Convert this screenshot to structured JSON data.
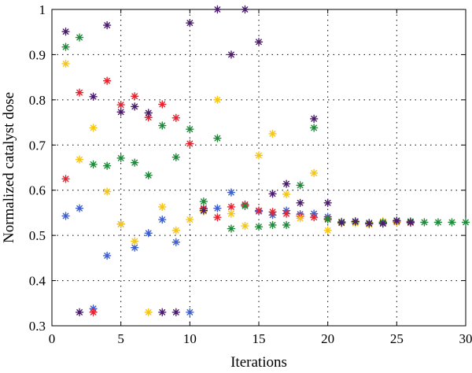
{
  "chart_data": {
    "type": "scatter",
    "title": "",
    "xlabel": "Iterations",
    "ylabel": "Normalized catalyst dose",
    "xlim": [
      0,
      30
    ],
    "ylim": [
      0.3,
      1.0
    ],
    "xticks": [
      0,
      5,
      10,
      15,
      20,
      25,
      30
    ],
    "yticks": [
      0.3,
      0.4,
      0.5,
      0.6,
      0.7,
      0.8,
      0.9,
      1.0
    ],
    "xtick_labels": [
      "0",
      "5",
      "10",
      "15",
      "20",
      "25",
      "30"
    ],
    "ytick_labels": [
      "0.3",
      "0.4",
      "0.5",
      "0.6",
      "0.7",
      "0.8",
      "0.9",
      "1"
    ],
    "grid": true,
    "marker": "asterisk",
    "series": [
      {
        "color": "#3f5fcf",
        "points": [
          [
            1,
            0.543
          ],
          [
            2,
            0.56
          ],
          [
            3,
            0.338
          ],
          [
            4,
            0.455
          ],
          [
            5,
            0.525
          ],
          [
            6,
            0.473
          ],
          [
            7,
            0.505
          ],
          [
            8,
            0.535
          ],
          [
            9,
            0.485
          ],
          [
            10,
            0.33
          ],
          [
            11,
            0.558
          ],
          [
            12,
            0.56
          ],
          [
            13,
            0.595
          ],
          [
            14,
            0.568
          ],
          [
            15,
            0.553
          ],
          [
            16,
            0.545
          ],
          [
            17,
            0.555
          ],
          [
            18,
            0.547
          ],
          [
            19,
            0.548
          ],
          [
            20,
            0.541
          ],
          [
            21,
            0.528
          ],
          [
            22,
            0.531
          ],
          [
            23,
            0.528
          ],
          [
            24,
            0.527
          ],
          [
            25,
            0.53
          ],
          [
            26,
            0.529
          ]
        ]
      },
      {
        "color": "#e8222e",
        "points": [
          [
            1,
            0.625
          ],
          [
            2,
            0.816
          ],
          [
            3,
            0.33
          ],
          [
            4,
            0.842
          ],
          [
            5,
            0.789
          ],
          [
            6,
            0.808
          ],
          [
            7,
            0.761
          ],
          [
            8,
            0.79
          ],
          [
            9,
            0.76
          ],
          [
            10,
            0.703
          ],
          [
            11,
            0.56
          ],
          [
            12,
            0.54
          ],
          [
            13,
            0.563
          ],
          [
            14,
            0.568
          ],
          [
            15,
            0.555
          ],
          [
            16,
            0.552
          ],
          [
            17,
            0.548
          ],
          [
            18,
            0.543
          ],
          [
            19,
            0.54
          ],
          [
            20,
            0.537
          ],
          [
            21,
            0.53
          ],
          [
            22,
            0.53
          ],
          [
            23,
            0.527
          ],
          [
            24,
            0.528
          ],
          [
            25,
            0.529
          ],
          [
            26,
            0.528
          ]
        ]
      },
      {
        "color": "#f5c518",
        "points": [
          [
            1,
            0.88
          ],
          [
            2,
            0.668
          ],
          [
            3,
            0.738
          ],
          [
            4,
            0.597
          ],
          [
            5,
            0.525
          ],
          [
            6,
            0.487
          ],
          [
            7,
            0.33
          ],
          [
            8,
            0.563
          ],
          [
            9,
            0.511
          ],
          [
            10,
            0.535
          ],
          [
            11,
            0.553
          ],
          [
            12,
            0.8
          ],
          [
            13,
            0.548
          ],
          [
            14,
            0.521
          ],
          [
            15,
            0.677
          ],
          [
            16,
            0.725
          ],
          [
            17,
            0.591
          ],
          [
            18,
            0.538
          ],
          [
            19,
            0.638
          ],
          [
            20,
            0.511
          ],
          [
            21,
            0.527
          ],
          [
            22,
            0.527
          ],
          [
            23,
            0.524
          ],
          [
            24,
            0.531
          ],
          [
            25,
            0.53
          ],
          [
            26,
            0.53
          ]
        ]
      },
      {
        "color": "#1f8a3a",
        "points": [
          [
            1,
            0.917
          ],
          [
            2,
            0.938
          ],
          [
            3,
            0.657
          ],
          [
            4,
            0.654
          ],
          [
            5,
            0.671
          ],
          [
            6,
            0.661
          ],
          [
            7,
            0.633
          ],
          [
            8,
            0.743
          ],
          [
            9,
            0.673
          ],
          [
            10,
            0.735
          ],
          [
            11,
            0.575
          ],
          [
            12,
            0.715
          ],
          [
            13,
            0.515
          ],
          [
            14,
            0.565
          ],
          [
            15,
            0.519
          ],
          [
            16,
            0.523
          ],
          [
            17,
            0.523
          ],
          [
            18,
            0.611
          ],
          [
            19,
            0.738
          ],
          [
            20,
            0.535
          ],
          [
            21,
            0.53
          ],
          [
            22,
            0.53
          ],
          [
            23,
            0.527
          ],
          [
            24,
            0.529
          ],
          [
            25,
            0.533
          ],
          [
            26,
            0.531
          ],
          [
            27,
            0.529
          ],
          [
            28,
            0.529
          ],
          [
            29,
            0.529
          ],
          [
            30,
            0.529
          ]
        ]
      },
      {
        "color": "#4b1c6e",
        "points": [
          [
            1,
            0.951
          ],
          [
            2,
            0.33
          ],
          [
            3,
            0.807
          ],
          [
            4,
            0.965
          ],
          [
            5,
            0.773
          ],
          [
            6,
            0.785
          ],
          [
            7,
            0.771
          ],
          [
            8,
            0.33
          ],
          [
            9,
            0.33
          ],
          [
            10,
            0.97
          ],
          [
            11,
            0.555
          ],
          [
            12,
            1.0
          ],
          [
            13,
            0.9
          ],
          [
            14,
            1.0
          ],
          [
            15,
            0.928
          ],
          [
            16,
            0.592
          ],
          [
            17,
            0.614
          ],
          [
            18,
            0.572
          ],
          [
            19,
            0.758
          ],
          [
            20,
            0.572
          ],
          [
            21,
            0.528
          ],
          [
            22,
            0.531
          ],
          [
            23,
            0.526
          ],
          [
            24,
            0.526
          ],
          [
            25,
            0.532
          ],
          [
            26,
            0.529
          ]
        ]
      }
    ]
  }
}
